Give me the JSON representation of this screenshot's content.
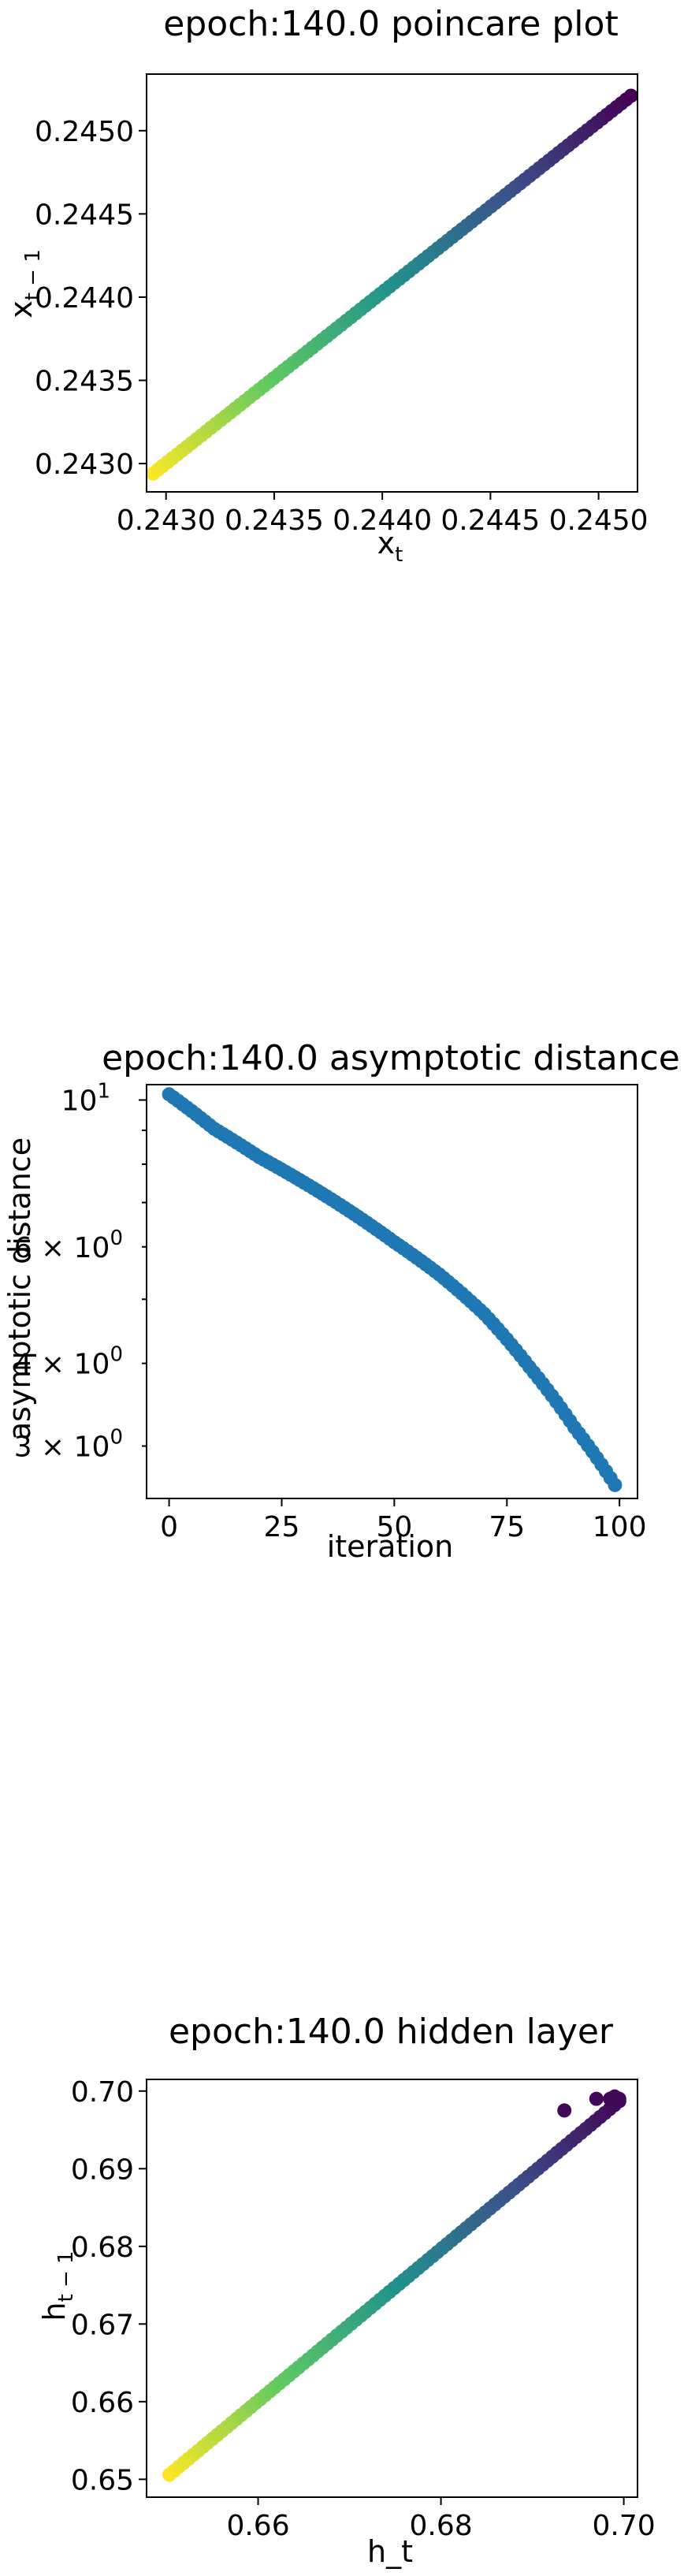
{
  "chart_data": [
    {
      "type": "scatter",
      "title": "epoch:140.0 poincare plot",
      "xlabel": "x",
      "xlabel_sub": "t",
      "ylabel": "x",
      "ylabel_sub": "t − 1",
      "xlim": [
        0.24291,
        0.24518
      ],
      "ylim": [
        0.24283,
        0.24534
      ],
      "xticks": [
        0.243,
        0.2435,
        0.244,
        0.2445,
        0.245
      ],
      "xtick_labels": [
        "0.2430",
        "0.2435",
        "0.2440",
        "0.2445",
        "0.2450"
      ],
      "yticks": [
        0.243,
        0.2435,
        0.244,
        0.2445,
        0.245
      ],
      "ytick_labels": [
        "0.2430",
        "0.2435",
        "0.2440",
        "0.2445",
        "0.2450"
      ],
      "colormap": "viridis (yellow at start, purple at end)",
      "point_count": 100,
      "x_start": 0.24294,
      "y_start": 0.24294,
      "x_end": 0.24515,
      "y_end": 0.24521,
      "points": [
        [
          0.24294,
          0.24294
        ],
        [
          0.2434,
          0.24341
        ],
        [
          0.24395,
          0.24397
        ],
        [
          0.24447,
          0.24451
        ],
        [
          0.24515,
          0.24521
        ]
      ],
      "marker_color_start": "#fde725",
      "marker_color_end": "#440154"
    },
    {
      "type": "scatter",
      "title": "epoch:140.0 asymptotic distance",
      "xlabel": "iteration",
      "ylabel": "asymptotic distance",
      "yscale": "log",
      "xlim": [
        -5,
        104
      ],
      "ylim": [
        2.5,
        10.55
      ],
      "xticks": [
        0,
        25,
        50,
        75,
        100
      ],
      "xtick_labels": [
        "0",
        "25",
        "50",
        "75",
        "100"
      ],
      "yticks_major": [
        10
      ],
      "ytick_major_labels": [
        "10",
        "1"
      ],
      "yticks_minor_labeled": [
        3,
        4,
        6
      ],
      "ytick_minor_labels": [
        [
          "3 × 10",
          "0"
        ],
        [
          "4 × 10",
          "0"
        ],
        [
          "6 × 10",
          "0"
        ]
      ],
      "yticks_minor_unlabeled": [
        5,
        7,
        8,
        9
      ],
      "marker_color": "#1f77b4",
      "point_count": 100,
      "curve_points": [
        [
          0,
          10.2
        ],
        [
          10,
          9.05
        ],
        [
          20,
          8.2
        ],
        [
          30,
          7.5
        ],
        [
          40,
          6.8
        ],
        [
          50,
          6.1
        ],
        [
          60,
          5.45
        ],
        [
          70,
          4.75
        ],
        [
          80,
          3.95
        ],
        [
          90,
          3.2
        ],
        [
          99,
          2.62
        ]
      ]
    },
    {
      "type": "scatter",
      "title": "epoch:140.0 hidden layer",
      "xlabel": "h_t",
      "ylabel": "h",
      "ylabel_sub": "t − 1",
      "xlim": [
        0.6478,
        0.7015
      ],
      "ylim": [
        0.6477,
        0.7015
      ],
      "xticks": [
        0.66,
        0.68,
        0.7
      ],
      "xtick_labels": [
        "0.66",
        "0.68",
        "0.70"
      ],
      "yticks": [
        0.65,
        0.66,
        0.67,
        0.68,
        0.69,
        0.7
      ],
      "ytick_labels": [
        "0.65",
        "0.66",
        "0.67",
        "0.68",
        "0.69",
        "0.70"
      ],
      "colormap": "viridis (yellow at start, purple at end)",
      "point_count": 100,
      "x_start": 0.6503,
      "y_start": 0.6506,
      "line_end": [
        0.6995,
        0.6987
      ],
      "points": [
        [
          0.6503,
          0.6506
        ],
        [
          0.665,
          0.665
        ],
        [
          0.68,
          0.68
        ],
        [
          0.6995,
          0.6987
        ],
        [
          0.6935,
          0.6975
        ],
        [
          0.697,
          0.699
        ],
        [
          0.6985,
          0.699
        ],
        [
          0.699,
          0.6993
        ]
      ],
      "outliers": [
        [
          0.6935,
          0.6975
        ],
        [
          0.697,
          0.699
        ],
        [
          0.6985,
          0.699
        ],
        [
          0.699,
          0.6993
        ],
        [
          0.6995,
          0.699
        ]
      ]
    }
  ]
}
